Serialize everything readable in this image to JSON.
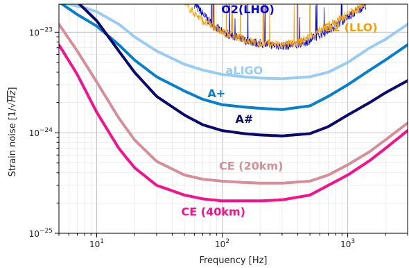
{
  "chart_data": {
    "type": "line",
    "xlabel": "Frequency [Hz]",
    "ylabel_prefix": "Strain noise [1/",
    "ylabel_radicand": "Hz",
    "ylabel_suffix": "]",
    "xscale": "log",
    "yscale": "log",
    "xlim": [
      5,
      3000
    ],
    "ylim": [
      1e-25,
      1.9e-23
    ],
    "grid": true,
    "xticks": [
      {
        "value": 10,
        "base": "10",
        "exp": "1"
      },
      {
        "value": 100,
        "base": "10",
        "exp": "2"
      },
      {
        "value": 1000,
        "base": "10",
        "exp": "3"
      }
    ],
    "yticks": [
      {
        "value": 1e-25,
        "base": "10",
        "exp": "−25"
      },
      {
        "value": 1e-24,
        "base": "10",
        "exp": "−24"
      },
      {
        "value": 1e-23,
        "base": "10",
        "exp": "−23"
      }
    ],
    "series": [
      {
        "name": "O2 (LHO)",
        "color": "#0000ee",
        "style": "noisy",
        "points": [
          [
            60,
            1.9e-23
          ],
          [
            80,
            1.25e-23
          ],
          [
            100,
            1e-23
          ],
          [
            150,
            8.3e-24
          ],
          [
            200,
            7.7e-24
          ],
          [
            300,
            7.3e-24
          ],
          [
            400,
            7.5e-24
          ],
          [
            500,
            8.3e-24
          ],
          [
            700,
            1.05e-23
          ],
          [
            1000,
            1.4e-23
          ],
          [
            1400,
            1.9e-23
          ]
        ]
      },
      {
        "name": "O2 (LLO)",
        "color": "#f5a100",
        "style": "noisy",
        "points": [
          [
            50,
            1.9e-23
          ],
          [
            70,
            1.3e-23
          ],
          [
            100,
            1e-23
          ],
          [
            150,
            8.4e-24
          ],
          [
            200,
            7.7e-24
          ],
          [
            300,
            7.5e-24
          ],
          [
            400,
            7.8e-24
          ],
          [
            500,
            9e-24
          ],
          [
            700,
            1.15e-23
          ],
          [
            1000,
            1.5e-23
          ],
          [
            1400,
            1.9e-23
          ]
        ]
      },
      {
        "name": "aLIGO",
        "color": "#99ccf2",
        "style": "smooth",
        "points": [
          [
            5,
            2e-23
          ],
          [
            8,
            1.75e-23
          ],
          [
            10,
            1.6e-23
          ],
          [
            15,
            1.2e-23
          ],
          [
            20,
            9e-24
          ],
          [
            30,
            6.5e-24
          ],
          [
            50,
            4.8e-24
          ],
          [
            70,
            4.2e-24
          ],
          [
            100,
            3.8e-24
          ],
          [
            150,
            3.6e-24
          ],
          [
            200,
            3.5e-24
          ],
          [
            300,
            3.45e-24
          ],
          [
            500,
            3.6e-24
          ],
          [
            700,
            4e-24
          ],
          [
            1000,
            5e-24
          ],
          [
            1500,
            7e-24
          ],
          [
            2000,
            8.5e-24
          ],
          [
            3000,
            1.2e-23
          ]
        ]
      },
      {
        "name": "A+",
        "color": "#0680cc",
        "style": "smooth",
        "points": [
          [
            5,
            2e-23
          ],
          [
            7,
            1.5e-23
          ],
          [
            10,
            1.15e-23
          ],
          [
            15,
            7.5e-24
          ],
          [
            20,
            5.3e-24
          ],
          [
            30,
            3.6e-24
          ],
          [
            50,
            2.6e-24
          ],
          [
            70,
            2.15e-24
          ],
          [
            100,
            1.9e-24
          ],
          [
            150,
            1.8e-24
          ],
          [
            200,
            1.75e-24
          ],
          [
            300,
            1.7e-24
          ],
          [
            500,
            1.85e-24
          ],
          [
            700,
            2.3e-24
          ],
          [
            1000,
            3e-24
          ],
          [
            1500,
            4.2e-24
          ],
          [
            2000,
            5.3e-24
          ],
          [
            3000,
            7.5e-24
          ]
        ]
      },
      {
        "name": "A#",
        "color": "#0a0a6e",
        "style": "smooth",
        "points": [
          [
            7,
            2e-23
          ],
          [
            10,
            1.3e-23
          ],
          [
            15,
            6.5e-24
          ],
          [
            20,
            4e-24
          ],
          [
            30,
            2.3e-24
          ],
          [
            50,
            1.5e-24
          ],
          [
            70,
            1.2e-24
          ],
          [
            100,
            1.05e-24
          ],
          [
            150,
            9.8e-25
          ],
          [
            200,
            9.5e-25
          ],
          [
            300,
            9.3e-25
          ],
          [
            500,
            9.8e-25
          ],
          [
            700,
            1.15e-24
          ],
          [
            1000,
            1.5e-24
          ],
          [
            1500,
            2e-24
          ],
          [
            2000,
            2.5e-24
          ],
          [
            3000,
            3.3e-24
          ]
        ]
      },
      {
        "name": "CE (20km)",
        "color": "#d68e98",
        "style": "smooth",
        "points": [
          [
            5,
            1.2e-23
          ],
          [
            7,
            6.5e-24
          ],
          [
            10,
            3.2e-24
          ],
          [
            15,
            1.4e-24
          ],
          [
            20,
            8.5e-25
          ],
          [
            30,
            5.2e-25
          ],
          [
            50,
            3.8e-25
          ],
          [
            70,
            3.45e-25
          ],
          [
            100,
            3.3e-25
          ],
          [
            150,
            3.2e-25
          ],
          [
            200,
            3.15e-25
          ],
          [
            300,
            3.15e-25
          ],
          [
            500,
            3.3e-25
          ],
          [
            700,
            3.8e-25
          ],
          [
            1000,
            4.8e-25
          ],
          [
            1500,
            6.5e-25
          ],
          [
            2000,
            8.5e-25
          ],
          [
            3000,
            1.25e-24
          ]
        ]
      },
      {
        "name": "CE (40km)",
        "color": "#f7108a",
        "style": "smooth",
        "points": [
          [
            5,
            7.5e-24
          ],
          [
            7,
            3.8e-24
          ],
          [
            10,
            1.6e-24
          ],
          [
            15,
            7e-25
          ],
          [
            20,
            4.5e-25
          ],
          [
            30,
            3e-25
          ],
          [
            50,
            2.4e-25
          ],
          [
            70,
            2.2e-25
          ],
          [
            100,
            2.1e-25
          ],
          [
            150,
            2.1e-25
          ],
          [
            200,
            2.1e-25
          ],
          [
            300,
            2.15e-25
          ],
          [
            500,
            2.4e-25
          ],
          [
            700,
            3e-25
          ],
          [
            1000,
            3.8e-25
          ],
          [
            1500,
            5.3e-25
          ],
          [
            2000,
            7e-25
          ],
          [
            3000,
            1.05e-24
          ]
        ]
      }
    ],
    "annotations": [
      {
        "text": "O2(LHO)",
        "series": 0,
        "x": 160,
        "y": 1.55e-23,
        "color": "#0000ee"
      },
      {
        "text": "O2 (LLO)",
        "series": 1,
        "x": 1050,
        "y": 1.02e-23,
        "color": "#f5a100"
      },
      {
        "text": "aLIGO",
        "series": 2,
        "x": 150,
        "y": 3.8e-24,
        "color": "#99ccf2"
      },
      {
        "text": "A+",
        "series": 3,
        "x": 90,
        "y": 2.25e-24,
        "color": "#0680cc"
      },
      {
        "text": "A#",
        "series": 4,
        "x": 150,
        "y": 1.25e-24,
        "color": "#0a0a6e"
      },
      {
        "text": "CE (20km)",
        "series": 5,
        "x": 170,
        "y": 4.3e-25,
        "color": "#d68e98"
      },
      {
        "text": "CE (40km)",
        "series": 6,
        "x": 85,
        "y": 1.5e-25,
        "color": "#f7108a"
      }
    ]
  }
}
